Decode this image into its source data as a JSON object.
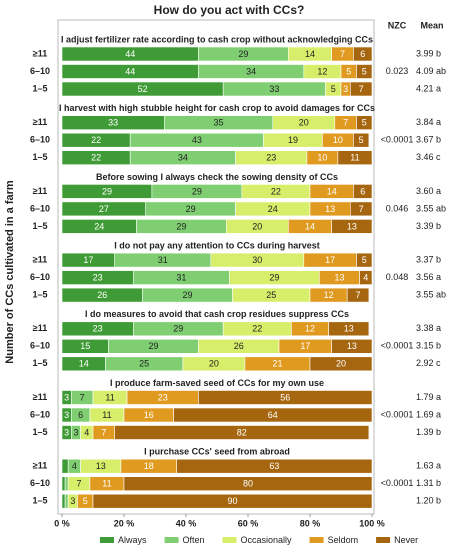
{
  "chart_data": {
    "type": "bar",
    "orientation": "horizontal",
    "stacked": true,
    "title": "How do you act with CCs?",
    "ylabel": "Number of CCs cultivated in a farm",
    "column_headers": [
      "NZC",
      "Mean"
    ],
    "xlim": [
      0,
      100
    ],
    "xticks": [
      {
        "value": 0,
        "label": "0 %"
      },
      {
        "value": 20,
        "label": "20 %"
      },
      {
        "value": 40,
        "label": "40 %"
      },
      {
        "value": 60,
        "label": "60 %"
      },
      {
        "value": 80,
        "label": "80 %"
      },
      {
        "value": 100,
        "label": "100 %"
      }
    ],
    "legend": "bottom",
    "series": [
      {
        "name": "Always",
        "color": "#3f9b35"
      },
      {
        "name": "Often",
        "color": "#7fcf72"
      },
      {
        "name": "Occasionally",
        "color": "#d7ee6a"
      },
      {
        "name": "Seldom",
        "color": "#e09a1f"
      },
      {
        "name": "Never",
        "color": "#a5660f"
      }
    ],
    "panels": [
      {
        "title": "I adjust fertilizer rate according to cash crop without acknowledging CCs",
        "nzc": "0.023",
        "categories": [
          "≥11",
          "6–10",
          "1–5"
        ],
        "means": [
          "3.99 b",
          "4.09 ab",
          "4.21 a"
        ],
        "values": [
          [
            44,
            29,
            14,
            7,
            6
          ],
          [
            44,
            34,
            12,
            5,
            5
          ],
          [
            52,
            33,
            5,
            3,
            7
          ]
        ]
      },
      {
        "title": "I harvest with high stubble height for cash crop to avoid damages for CCs",
        "nzc": "<0.0001",
        "categories": [
          "≥11",
          "6–10",
          "1–5"
        ],
        "means": [
          "3.84 a",
          "3.67 b",
          "3.46 c"
        ],
        "values": [
          [
            33,
            35,
            20,
            7,
            5
          ],
          [
            22,
            43,
            19,
            10,
            5
          ],
          [
            22,
            34,
            23,
            10,
            11
          ]
        ]
      },
      {
        "title": "Before sowing I always check the sowing density of CCs",
        "nzc": "0.046",
        "categories": [
          "≥11",
          "6–10",
          "1–5"
        ],
        "means": [
          "3.60 a",
          "3.55 ab",
          "3.39 b"
        ],
        "values": [
          [
            29,
            29,
            22,
            14,
            6
          ],
          [
            27,
            29,
            24,
            13,
            7
          ],
          [
            24,
            29,
            20,
            14,
            13
          ]
        ]
      },
      {
        "title": "I do not pay any attention to CCs during harvest",
        "nzc": "0.048",
        "categories": [
          "≥11",
          "6–10",
          "1–5"
        ],
        "means": [
          "3.37 b",
          "3.56 a",
          "3.55 ab"
        ],
        "values": [
          [
            17,
            31,
            30,
            17,
            5
          ],
          [
            23,
            31,
            29,
            13,
            4
          ],
          [
            26,
            29,
            25,
            12,
            7
          ]
        ]
      },
      {
        "title": "I do measures to avoid that cash crop residues suppress CCs",
        "nzc": "<0.0001",
        "categories": [
          "≥11",
          "6–10",
          "1–5"
        ],
        "means": [
          "3.38 a",
          "3.15 b",
          "2.92 c"
        ],
        "values": [
          [
            23,
            29,
            22,
            12,
            13
          ],
          [
            15,
            29,
            26,
            17,
            13
          ],
          [
            14,
            25,
            20,
            21,
            20
          ]
        ]
      },
      {
        "title": "I produce farm-saved seed of CCs for my own use",
        "nzc": "<0.0001",
        "categories": [
          "≥11",
          "6–10",
          "1–5"
        ],
        "means": [
          "1.79 a",
          "1.69 a",
          "1.39 b"
        ],
        "values": [
          [
            3,
            7,
            11,
            23,
            56
          ],
          [
            3,
            6,
            11,
            16,
            64
          ],
          [
            3,
            3,
            4,
            7,
            82
          ]
        ]
      },
      {
        "title": "I purchase CCs' seed from abroad",
        "nzc": "<0.0001",
        "categories": [
          "≥11",
          "6–10",
          "1–5"
        ],
        "means": [
          "1.63 a",
          "1.31 b",
          "1.20 b"
        ],
        "values": [
          [
            2,
            4,
            13,
            18,
            63
          ],
          [
            1,
            1,
            7,
            11,
            80
          ],
          [
            1,
            1,
            3,
            5,
            90
          ]
        ]
      }
    ]
  }
}
